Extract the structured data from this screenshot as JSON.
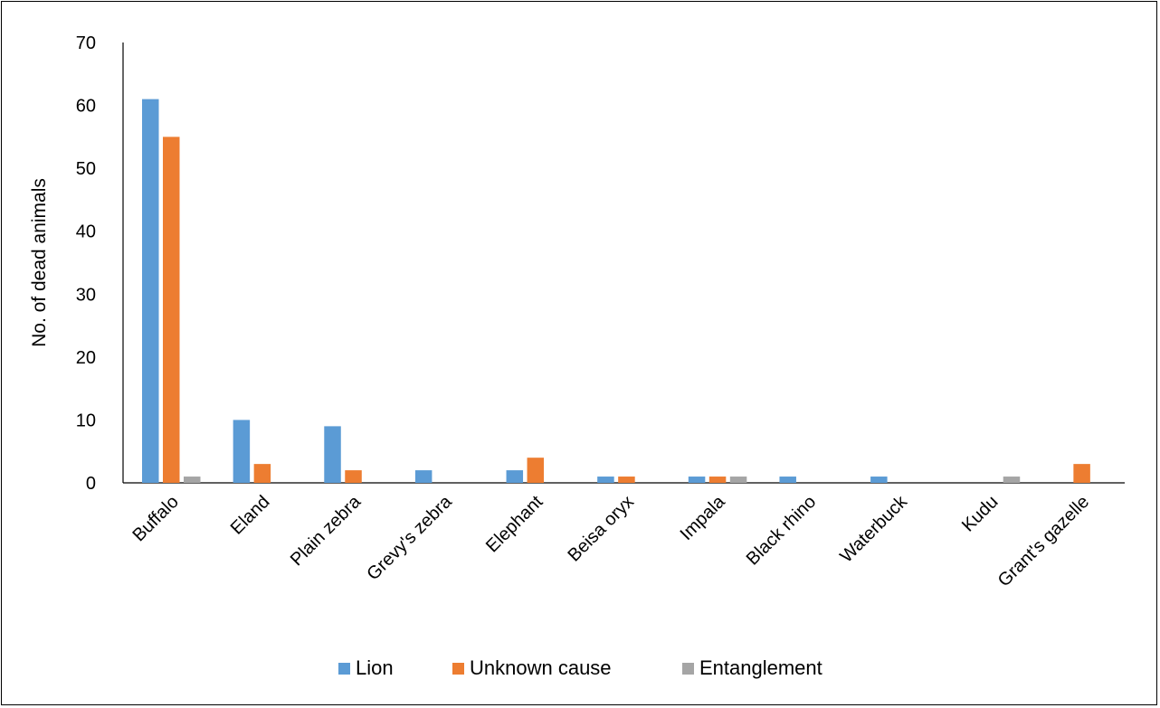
{
  "chart_data": {
    "type": "bar",
    "title": "",
    "xlabel": "",
    "ylabel": "No. of dead animals",
    "ylim": [
      0,
      70
    ],
    "yticks": [
      0,
      10,
      20,
      30,
      40,
      50,
      60,
      70
    ],
    "grid": false,
    "legend_position": "bottom",
    "categories": [
      "Buffalo",
      "Eland",
      "Plain zebra",
      "Grevy's zebra",
      "Elephant",
      "Beisa oryx",
      "Impala",
      "Black rhino",
      "Waterbuck",
      "Kudu",
      "Grant's gazelle"
    ],
    "series": [
      {
        "name": "Lion",
        "color": "#5b9bd5",
        "values": [
          61,
          10,
          9,
          2,
          2,
          1,
          1,
          1,
          1,
          0,
          0
        ]
      },
      {
        "name": "Unknown cause",
        "color": "#ed7d31",
        "values": [
          55,
          3,
          2,
          0,
          4,
          1,
          1,
          0,
          0,
          0,
          3
        ]
      },
      {
        "name": "Entanglement",
        "color": "#a5a5a5",
        "values": [
          1,
          0,
          0,
          0,
          0,
          0,
          1,
          0,
          0,
          1,
          0
        ]
      }
    ]
  }
}
